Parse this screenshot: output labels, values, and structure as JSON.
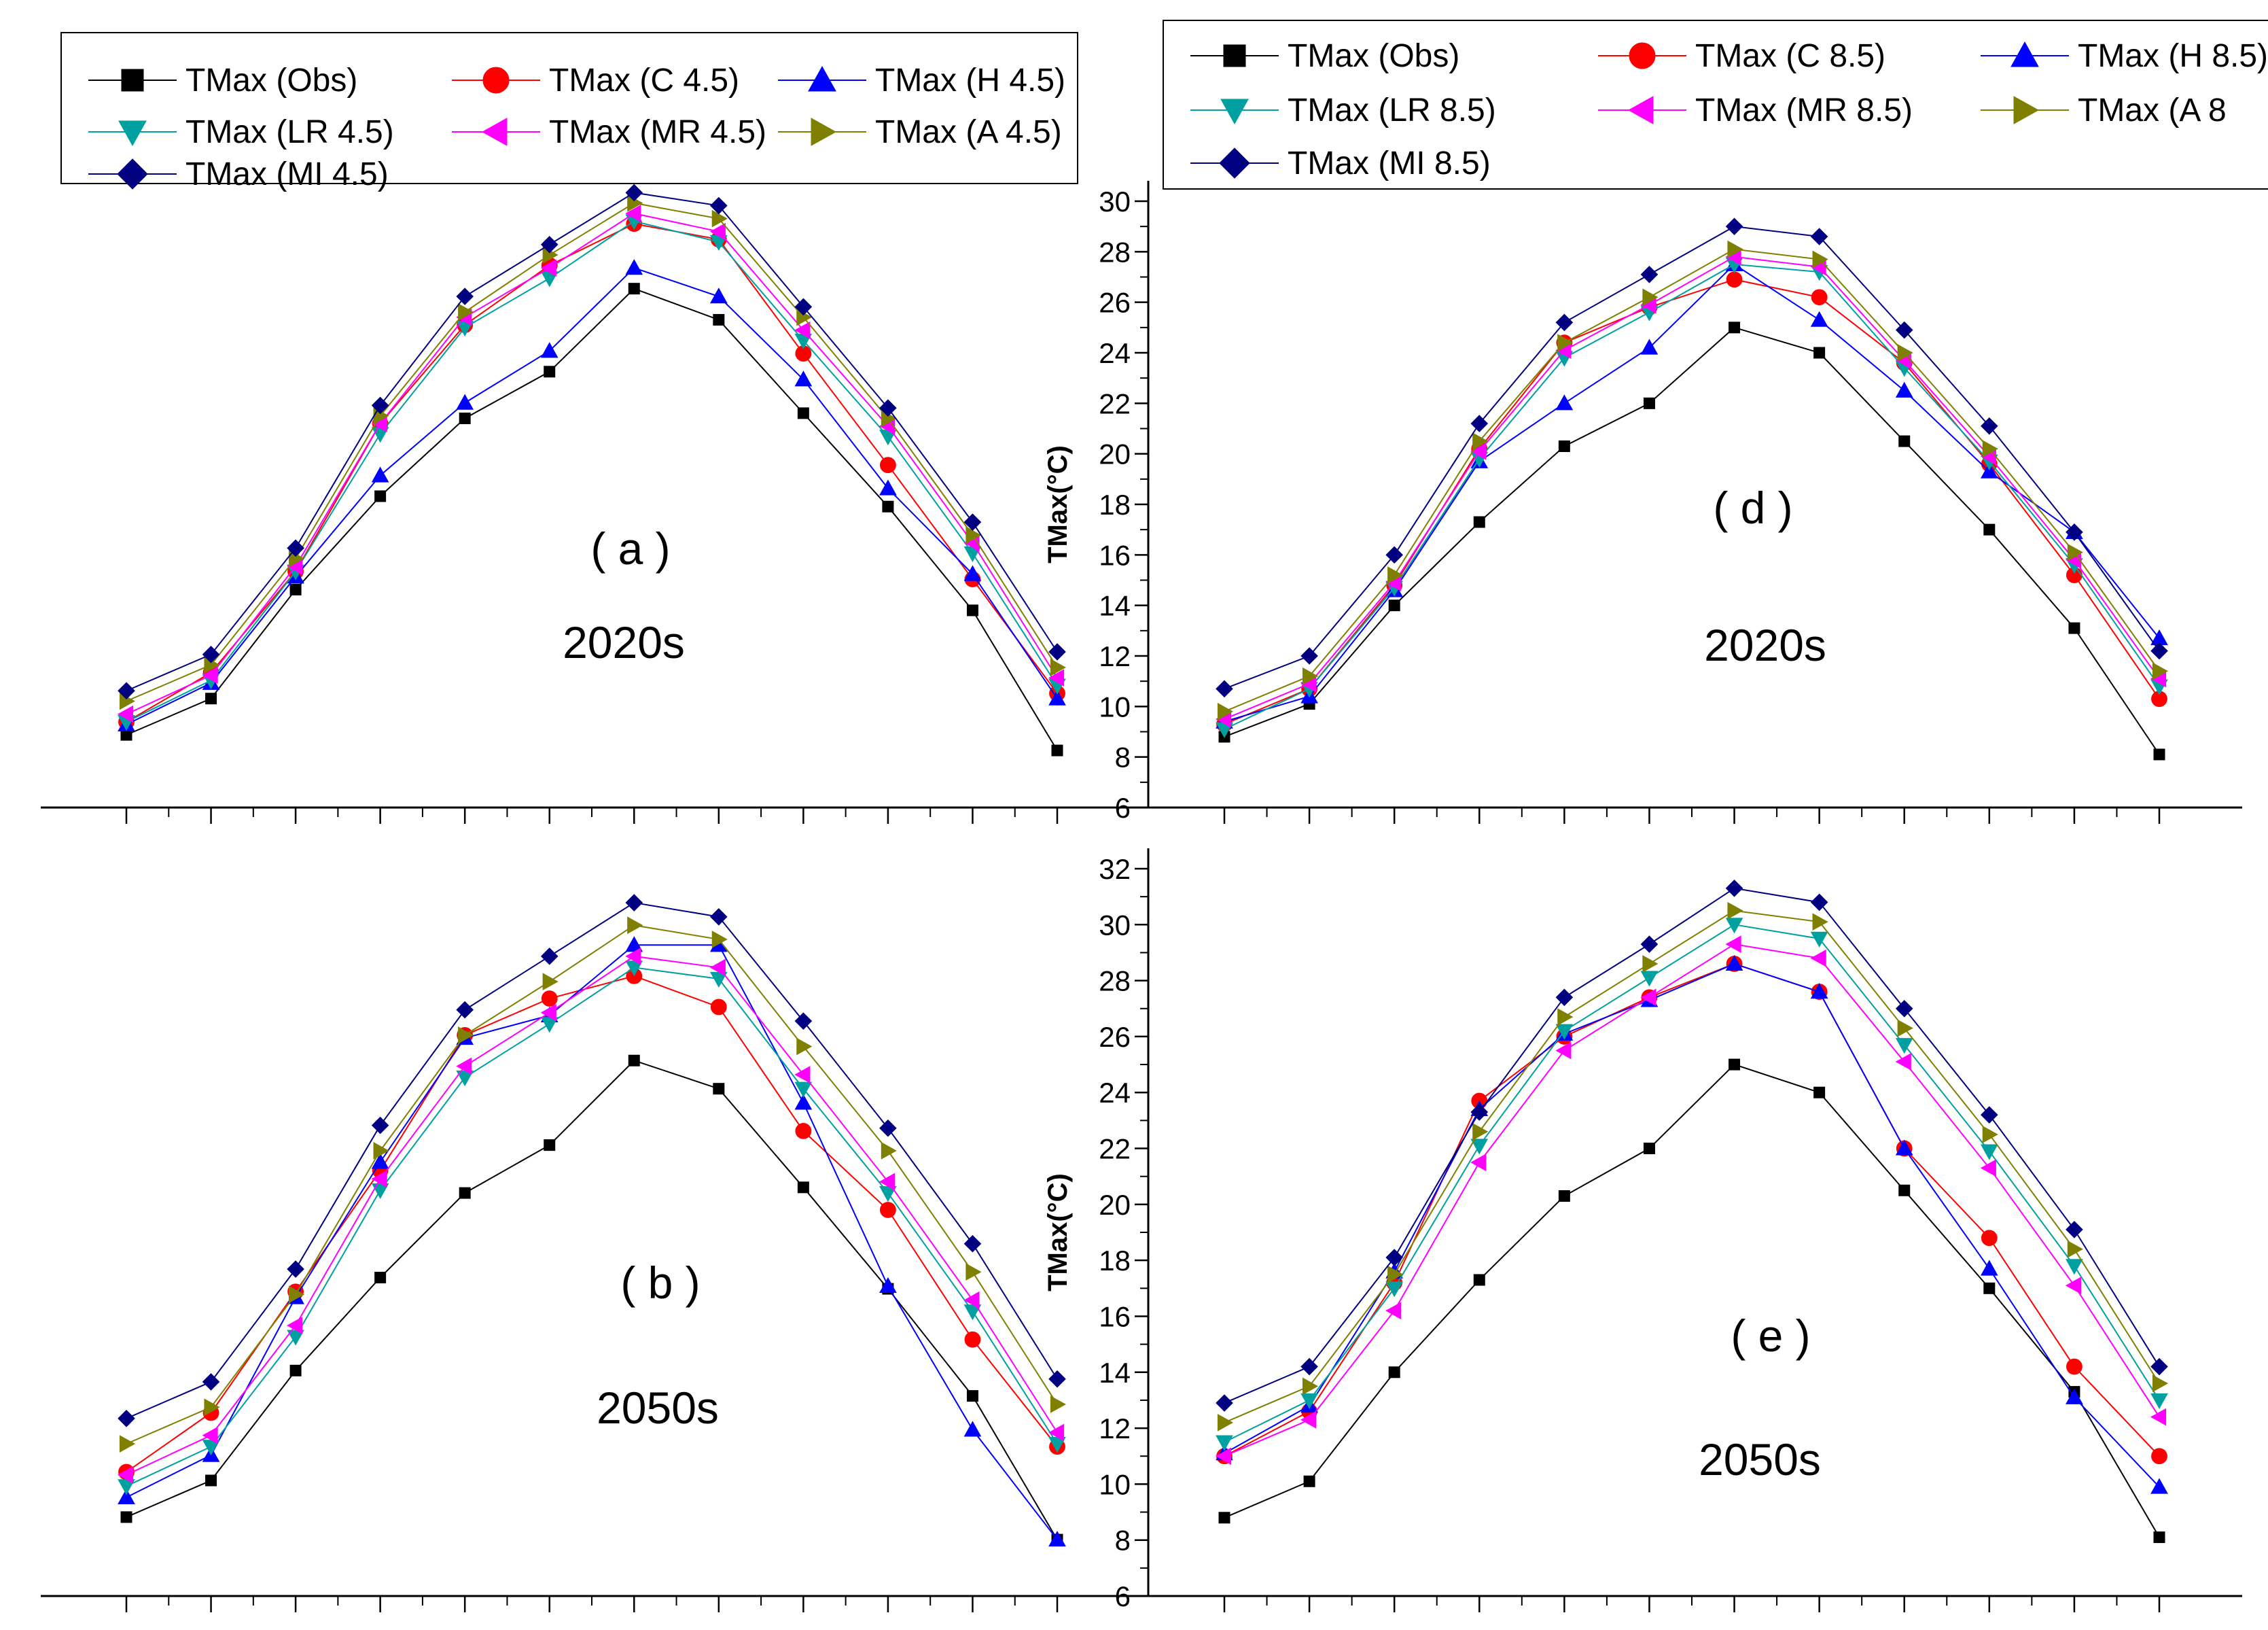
{
  "chart_data": [
    {
      "id": "a",
      "type": "line",
      "panel_label": "( a )",
      "period_label": "2020s",
      "ylabel": "",
      "show_tick_labels": false,
      "ylim": [
        6,
        30
      ],
      "months": [
        1,
        2,
        3,
        4,
        5,
        6,
        7,
        8,
        9,
        10,
        11,
        12
      ],
      "legend_entries": [
        "TMax (Obs)",
        "TMax (C 4.5)",
        "TMax (H 4.5)",
        "TMax (LR 4.5)",
        "TMax (MR 4.5)",
        "TMax (A 4.5)",
        "TMax (MI 4.5)"
      ],
      "series": [
        {
          "name": "TMax (Obs)",
          "color": "#000000",
          "marker": "square",
          "values": [
            8.8,
            10.2,
            14.4,
            18.0,
            21.0,
            22.8,
            26.0,
            24.8,
            21.2,
            17.6,
            13.6,
            8.2
          ]
        },
        {
          "name": "TMax (C 4.5)",
          "color": "#ff0000",
          "marker": "circle",
          "values": [
            9.3,
            11.2,
            15.1,
            20.8,
            24.6,
            26.9,
            28.5,
            27.9,
            23.5,
            19.2,
            14.8,
            10.4
          ]
        },
        {
          "name": "TMax (H 4.5)",
          "color": "#0000ff",
          "marker": "triangle-up",
          "values": [
            9.2,
            10.8,
            14.9,
            18.8,
            21.6,
            23.6,
            26.8,
            25.7,
            22.5,
            18.3,
            15.0,
            10.2
          ]
        },
        {
          "name": "TMax (LR 4.5)",
          "color": "#00a0a0",
          "marker": "triangle-down",
          "values": [
            9.3,
            10.9,
            15.1,
            20.4,
            24.5,
            26.4,
            28.6,
            27.8,
            24.0,
            20.3,
            15.8,
            10.7
          ]
        },
        {
          "name": "TMax (MR 4.5)",
          "color": "#ff00ff",
          "marker": "triangle-left",
          "values": [
            9.6,
            11.1,
            15.3,
            20.8,
            24.9,
            26.8,
            28.9,
            28.2,
            24.4,
            20.7,
            16.2,
            11.0
          ]
        },
        {
          "name": "TMax (A 4.5)",
          "color": "#808000",
          "marker": "triangle-right",
          "values": [
            10.1,
            11.5,
            15.6,
            21.1,
            25.1,
            27.3,
            29.3,
            28.7,
            24.9,
            21.0,
            16.5,
            11.4
          ]
        },
        {
          "name": "TMax (MI 4.5)",
          "color": "#000080",
          "marker": "diamond",
          "values": [
            10.5,
            11.9,
            16.0,
            21.5,
            25.7,
            27.7,
            29.7,
            29.2,
            25.3,
            21.4,
            17.0,
            12.0
          ]
        }
      ]
    },
    {
      "id": "d",
      "type": "line",
      "panel_label": "( d )",
      "period_label": "2020s",
      "ylabel": "TMax(°C)",
      "show_tick_labels": true,
      "ylim": [
        6,
        30
      ],
      "yticks": [
        6,
        8,
        10,
        12,
        14,
        16,
        18,
        20,
        22,
        24,
        26,
        28,
        30
      ],
      "months": [
        1,
        2,
        3,
        4,
        5,
        6,
        7,
        8,
        9,
        10,
        11,
        12
      ],
      "legend_entries": [
        "TMax (Obs)",
        "TMax (C 8.5)",
        "TMax (H 8.5)",
        "TMax (LR 8.5)",
        "TMax (MR 8.5)",
        "TMax (A 8",
        "TMax (MI 8.5)"
      ],
      "series": [
        {
          "name": "TMax (Obs)",
          "color": "#000000",
          "marker": "square",
          "values": [
            8.8,
            10.1,
            14.0,
            17.3,
            20.3,
            22.0,
            25.0,
            24.0,
            20.5,
            17.0,
            13.1,
            8.1
          ]
        },
        {
          "name": "TMax (C 8.5)",
          "color": "#ff0000",
          "marker": "circle",
          "values": [
            9.3,
            10.7,
            14.8,
            20.2,
            24.4,
            25.8,
            26.9,
            26.2,
            23.6,
            19.6,
            15.2,
            10.3
          ]
        },
        {
          "name": "TMax (H 8.5)",
          "color": "#0000ff",
          "marker": "triangle-up",
          "values": [
            9.4,
            10.4,
            14.6,
            19.7,
            22.0,
            24.2,
            27.5,
            25.3,
            22.5,
            19.3,
            16.9,
            12.7
          ]
        },
        {
          "name": "TMax (LR 8.5)",
          "color": "#00a0a0",
          "marker": "triangle-down",
          "values": [
            9.1,
            10.7,
            14.7,
            19.8,
            23.8,
            25.6,
            27.5,
            27.2,
            23.4,
            19.7,
            15.6,
            10.8
          ]
        },
        {
          "name": "TMax (MR 8.5)",
          "color": "#ff00ff",
          "marker": "triangle-left",
          "values": [
            9.5,
            10.9,
            14.9,
            20.1,
            24.1,
            25.9,
            27.8,
            27.4,
            23.7,
            19.9,
            15.8,
            11.1
          ]
        },
        {
          "name": "TMax (A 8",
          "color": "#808000",
          "marker": "triangle-right",
          "values": [
            9.8,
            11.2,
            15.2,
            20.5,
            24.4,
            26.2,
            28.1,
            27.7,
            24.0,
            20.2,
            16.1,
            11.4
          ]
        },
        {
          "name": "TMax (MI 8.5)",
          "color": "#000080",
          "marker": "diamond",
          "values": [
            10.7,
            12.0,
            16.0,
            21.2,
            25.2,
            27.1,
            29.0,
            28.6,
            24.9,
            21.1,
            16.9,
            12.2
          ]
        }
      ]
    },
    {
      "id": "b",
      "type": "line",
      "panel_label": "( b )",
      "period_label": "2050s",
      "ylabel": "",
      "show_tick_labels": false,
      "ylim": [
        6,
        32
      ],
      "months": [
        1,
        2,
        3,
        4,
        5,
        6,
        7,
        8,
        9,
        10,
        11,
        12
      ],
      "legend_entries": [],
      "series": [
        {
          "name": "TMax (Obs)",
          "color": "#000000",
          "marker": "square",
          "values": [
            8.8,
            10.1,
            14.0,
            17.3,
            20.3,
            22.0,
            25.0,
            24.0,
            20.5,
            16.9,
            13.1,
            8.0
          ]
        },
        {
          "name": "TMax (C 4.5)",
          "color": "#ff0000",
          "marker": "circle",
          "values": [
            10.4,
            12.5,
            16.8,
            21.1,
            25.9,
            27.2,
            28.0,
            26.9,
            22.5,
            19.7,
            15.1,
            11.3
          ]
        },
        {
          "name": "TMax (H 4.5)",
          "color": "#0000ff",
          "marker": "triangle-up",
          "values": [
            9.5,
            11.0,
            16.6,
            21.4,
            25.8,
            26.6,
            29.1,
            29.1,
            23.5,
            17.0,
            11.9,
            8.0
          ]
        },
        {
          "name": "TMax (LR 4.5)",
          "color": "#00a0a0",
          "marker": "triangle-down",
          "values": [
            9.9,
            11.3,
            15.2,
            20.4,
            24.4,
            26.3,
            28.3,
            27.9,
            24.0,
            20.3,
            16.1,
            11.4
          ]
        },
        {
          "name": "TMax (MR 4.5)",
          "color": "#ff00ff",
          "marker": "triangle-left",
          "values": [
            10.3,
            11.7,
            15.6,
            20.8,
            24.8,
            26.7,
            28.7,
            28.3,
            24.5,
            20.7,
            16.5,
            11.8
          ]
        },
        {
          "name": "TMax (A 4.5)",
          "color": "#808000",
          "marker": "triangle-right",
          "values": [
            11.4,
            12.7,
            16.7,
            21.8,
            25.9,
            27.8,
            29.8,
            29.3,
            25.5,
            21.8,
            17.5,
            12.8
          ]
        },
        {
          "name": "TMax (MI 4.5)",
          "color": "#000080",
          "marker": "diamond",
          "values": [
            12.3,
            13.6,
            17.6,
            22.7,
            26.8,
            28.7,
            30.6,
            30.1,
            26.4,
            22.6,
            18.5,
            13.7
          ]
        }
      ]
    },
    {
      "id": "e",
      "type": "line",
      "panel_label": "( e )",
      "period_label": "2050s",
      "ylabel": "TMax(°C)",
      "show_tick_labels": true,
      "ylim": [
        6,
        32
      ],
      "yticks": [
        6,
        8,
        10,
        12,
        14,
        16,
        18,
        20,
        22,
        24,
        26,
        28,
        30,
        32
      ],
      "months": [
        1,
        2,
        3,
        4,
        5,
        6,
        7,
        8,
        9,
        10,
        11,
        12
      ],
      "legend_entries": [],
      "series": [
        {
          "name": "TMax (Obs)",
          "color": "#000000",
          "marker": "square",
          "values": [
            8.8,
            10.1,
            14.0,
            17.3,
            20.3,
            22.0,
            25.0,
            24.0,
            20.5,
            17.0,
            13.3,
            8.1
          ]
        },
        {
          "name": "TMax (C 8.5)",
          "color": "#ff0000",
          "marker": "circle",
          "values": [
            11.0,
            12.6,
            17.2,
            23.7,
            26.0,
            27.4,
            28.6,
            27.6,
            22.0,
            18.8,
            14.2,
            11.0
          ]
        },
        {
          "name": "TMax (H 8.5)",
          "color": "#0000ff",
          "marker": "triangle-up",
          "values": [
            11.1,
            12.8,
            17.6,
            23.4,
            26.1,
            27.3,
            28.6,
            27.6,
            22.0,
            17.7,
            13.1,
            9.9
          ]
        },
        {
          "name": "TMax (LR 8.5)",
          "color": "#00a0a0",
          "marker": "triangle-down",
          "values": [
            11.5,
            13.0,
            17.0,
            22.1,
            26.2,
            28.1,
            30.0,
            29.5,
            25.7,
            21.9,
            17.8,
            13.0
          ]
        },
        {
          "name": "TMax (MR 8.5)",
          "color": "#ff00ff",
          "marker": "triangle-left",
          "values": [
            11.0,
            12.3,
            16.2,
            21.5,
            25.5,
            27.4,
            29.3,
            28.8,
            25.1,
            21.3,
            17.1,
            12.4
          ]
        },
        {
          "name": "TMax (A 8",
          "color": "#808000",
          "marker": "triangle-right",
          "values": [
            12.2,
            13.5,
            17.5,
            22.6,
            26.7,
            28.6,
            30.5,
            30.1,
            26.3,
            22.5,
            18.4,
            13.6
          ]
        },
        {
          "name": "TMax (MI 8.5)",
          "color": "#000080",
          "marker": "diamond",
          "values": [
            12.9,
            14.2,
            18.1,
            23.3,
            27.4,
            29.3,
            31.3,
            30.8,
            27.0,
            23.2,
            19.1,
            14.2
          ]
        }
      ]
    }
  ]
}
